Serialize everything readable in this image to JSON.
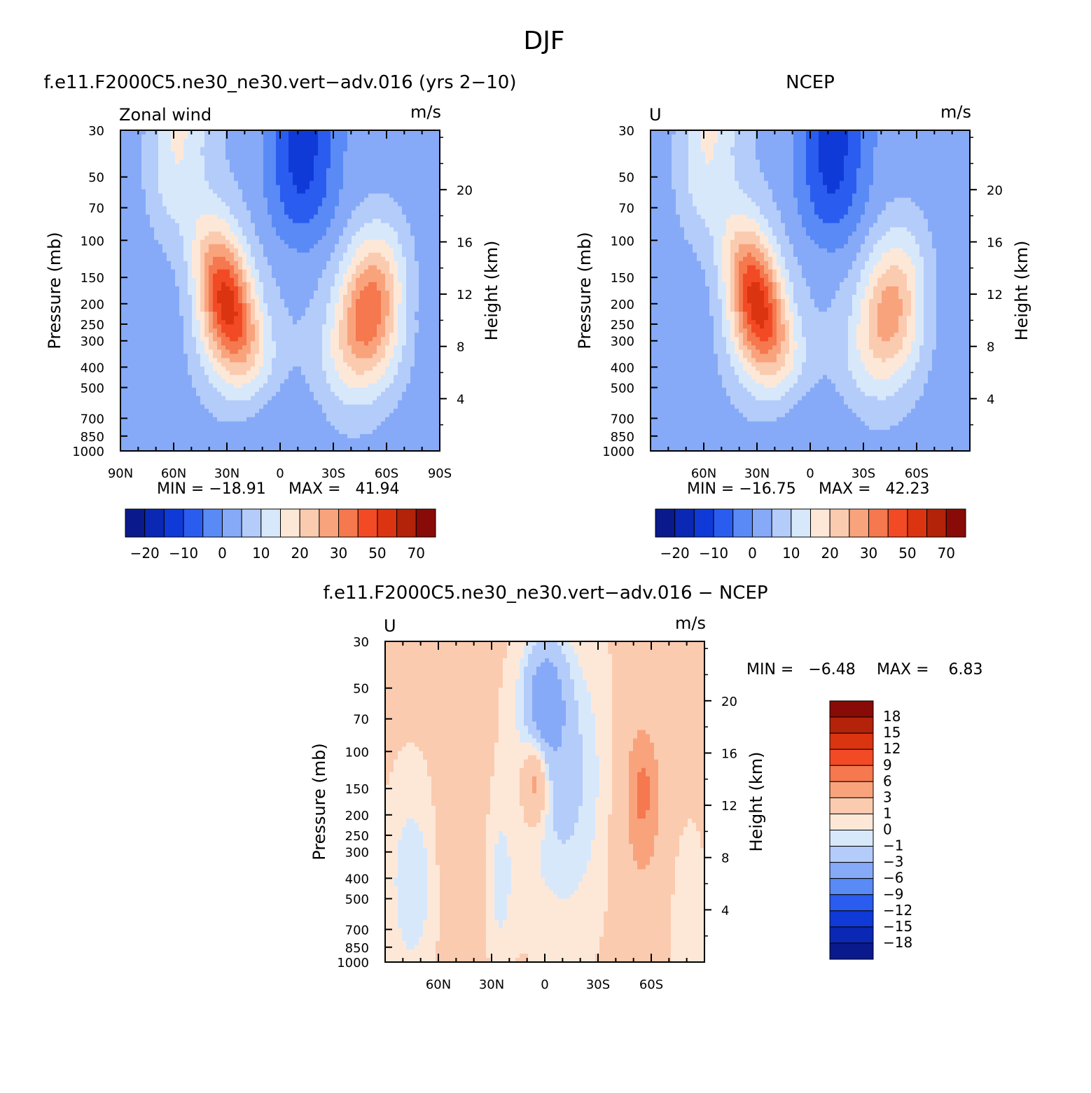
{
  "figure_title": "DJF",
  "colors": {
    "model_obs_scale": [
      "#0a1a8c",
      "#0a28b4",
      "#0f3ad8",
      "#2a5cf0",
      "#5a8af5",
      "#86aaf7",
      "#b4ccfa",
      "#d8e8fb",
      "#fde8d8",
      "#fbcbb0",
      "#f9a37d",
      "#f5784e",
      "#f24a25",
      "#db3411",
      "#b2230a",
      "#880b07"
    ],
    "diff_scale": [
      "#0a1a8c",
      "#0a28b4",
      "#0f3ad8",
      "#2a5cf0",
      "#5a8af5",
      "#86aaf7",
      "#b4ccfa",
      "#d8e8fb",
      "#fde8d8",
      "#fbcbb0",
      "#f9a37d",
      "#f5784e",
      "#f24a25",
      "#db3411",
      "#b2230a",
      "#880b07"
    ]
  },
  "chart_data": [
    {
      "id": "model",
      "type": "contour",
      "title": "f.e11.F2000C5.ne30_ne30.vert−adv.016 (yrs 2−10)",
      "left_label": "Zonal wind",
      "units": "m/s",
      "ylabel": "Pressure (mb)",
      "y2label": "Height (km)",
      "x_ticks": [
        "90N",
        "60N",
        "30N",
        "0",
        "30S",
        "60S",
        "90S"
      ],
      "x_tick_values": [
        90,
        60,
        30,
        0,
        -30,
        -60,
        -90
      ],
      "y_ticks": [
        "30",
        "50",
        "70",
        "100",
        "150",
        "200",
        "250",
        "300",
        "400",
        "500",
        "700",
        "850",
        "1000"
      ],
      "y_tick_values": [
        30,
        50,
        70,
        100,
        150,
        200,
        250,
        300,
        400,
        500,
        700,
        850,
        1000
      ],
      "y2_ticks": [
        "20",
        "16",
        "12",
        "8",
        "4"
      ],
      "y2_tick_values": [
        20,
        16,
        12,
        8,
        4
      ],
      "min_text": "MIN = −18.91",
      "max_text": "MAX =   41.94",
      "min": -18.91,
      "max": 41.94,
      "colorbar_labels": [
        "−20",
        "−10",
        "0",
        "10",
        "20",
        "30",
        "50",
        "70"
      ],
      "jets": [
        {
          "lat": 30,
          "p_core": 200,
          "max": 41.94,
          "hemisphere": "NH"
        },
        {
          "lat": -50,
          "p_core": 220,
          "max": 35,
          "hemisphere": "SH"
        }
      ],
      "easterly_min": {
        "lat": -15,
        "p": 30,
        "value": -18.91
      }
    },
    {
      "id": "obs",
      "type": "contour",
      "title": "NCEP",
      "left_label": "U",
      "units": "m/s",
      "ylabel": "Pressure (mb)",
      "y2label": "Height (km)",
      "x_ticks": [
        "60N",
        "30N",
        "0",
        "30S",
        "60S"
      ],
      "x_tick_values": [
        60,
        30,
        0,
        -30,
        -60
      ],
      "y_ticks": [
        "30",
        "50",
        "70",
        "100",
        "150",
        "200",
        "250",
        "300",
        "400",
        "500",
        "700",
        "850",
        "1000"
      ],
      "y_tick_values": [
        30,
        50,
        70,
        100,
        150,
        200,
        250,
        300,
        400,
        500,
        700,
        850,
        1000
      ],
      "y2_ticks": [
        "20",
        "16",
        "12",
        "8",
        "4"
      ],
      "y2_tick_values": [
        20,
        16,
        12,
        8,
        4
      ],
      "min_text": "MIN = −16.75",
      "max_text": "MAX =   42.23",
      "min": -16.75,
      "max": 42.23,
      "colorbar_labels": [
        "−20",
        "−10",
        "0",
        "10",
        "20",
        "30",
        "50",
        "70"
      ],
      "jets": [
        {
          "lat": 30,
          "p_core": 200,
          "max": 42.23,
          "hemisphere": "NH"
        },
        {
          "lat": -45,
          "p_core": 220,
          "max": 28,
          "hemisphere": "SH"
        }
      ]
    },
    {
      "id": "diff",
      "type": "contour",
      "title": "f.e11.F2000C5.ne30_ne30.vert−adv.016 − NCEP",
      "left_label": "U",
      "units": "m/s",
      "ylabel": "Pressure (mb)",
      "y2label": "Height (km)",
      "x_ticks": [
        "60N",
        "30N",
        "0",
        "30S",
        "60S"
      ],
      "x_tick_values": [
        60,
        30,
        0,
        -30,
        -60
      ],
      "y_ticks": [
        "30",
        "50",
        "70",
        "100",
        "150",
        "200",
        "250",
        "300",
        "400",
        "500",
        "700",
        "850",
        "1000"
      ],
      "y_tick_values": [
        30,
        50,
        70,
        100,
        150,
        200,
        250,
        300,
        400,
        500,
        700,
        850,
        1000
      ],
      "y2_ticks": [
        "20",
        "16",
        "12",
        "8",
        "4"
      ],
      "y2_tick_values": [
        20,
        16,
        12,
        8,
        4
      ],
      "min_text": "MIN =   −6.48",
      "max_text": "MAX =    6.83",
      "min": -6.48,
      "max": 6.83,
      "colorbar_labels": [
        "18",
        "15",
        "12",
        "9",
        "6",
        "3",
        "1",
        "0",
        "−1",
        "−3",
        "−6",
        "−9",
        "−12",
        "−15",
        "−18"
      ]
    }
  ]
}
